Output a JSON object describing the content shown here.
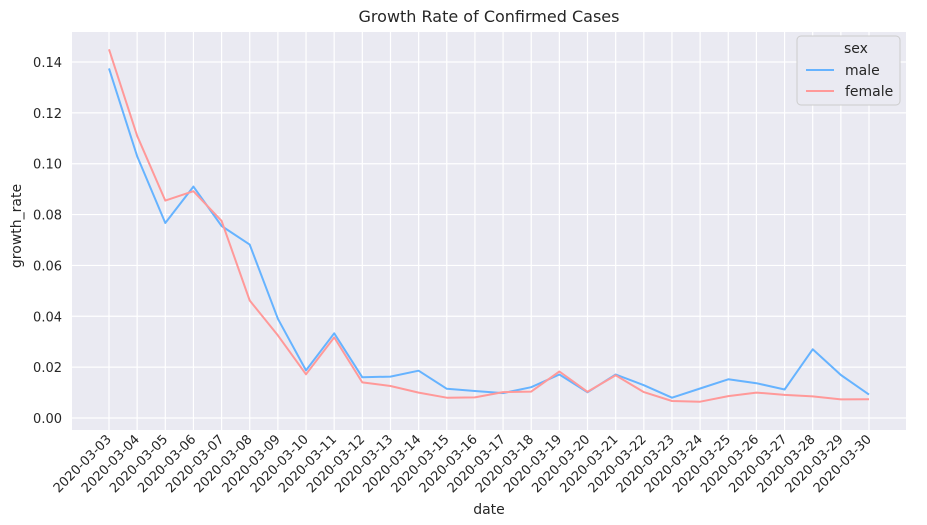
{
  "chart_data": {
    "type": "line",
    "title": "Growth Rate of Confirmed Cases",
    "xlabel": "date",
    "ylabel": "growth_rate",
    "ylim": [
      0,
      0.15
    ],
    "yticks": [
      "0.00",
      "0.02",
      "0.04",
      "0.06",
      "0.08",
      "0.10",
      "0.12",
      "0.14"
    ],
    "ytick_values": [
      0,
      0.02,
      0.04,
      0.06,
      0.08,
      0.1,
      0.12,
      0.14
    ],
    "grid": true,
    "legend": {
      "title": "sex",
      "position": "top-right"
    },
    "x": [
      "2020-03-03",
      "2020-03-04",
      "2020-03-05",
      "2020-03-06",
      "2020-03-07",
      "2020-03-08",
      "2020-03-09",
      "2020-03-10",
      "2020-03-11",
      "2020-03-12",
      "2020-03-13",
      "2020-03-14",
      "2020-03-15",
      "2020-03-16",
      "2020-03-17",
      "2020-03-18",
      "2020-03-19",
      "2020-03-20",
      "2020-03-21",
      "2020-03-22",
      "2020-03-23",
      "2020-03-24",
      "2020-03-25",
      "2020-03-26",
      "2020-03-27",
      "2020-03-28",
      "2020-03-29",
      "2020-03-30"
    ],
    "series": [
      {
        "name": "male",
        "color": "#66b3ff",
        "values": [
          0.1375,
          0.103,
          0.0767,
          0.091,
          0.0755,
          0.0682,
          0.039,
          0.0187,
          0.0333,
          0.016,
          0.0163,
          0.0186,
          0.0115,
          0.0106,
          0.0098,
          0.0121,
          0.0171,
          0.0101,
          0.0171,
          0.0129,
          0.008,
          0.0116,
          0.0152,
          0.0137,
          0.0112,
          0.027,
          0.0169,
          0.0092
        ]
      },
      {
        "name": "female",
        "color": "#ff9999",
        "values": [
          0.145,
          0.111,
          0.0855,
          0.0892,
          0.0775,
          0.0462,
          0.0325,
          0.0172,
          0.0317,
          0.014,
          0.0126,
          0.01,
          0.008,
          0.0081,
          0.0102,
          0.0104,
          0.0183,
          0.0103,
          0.0168,
          0.0102,
          0.0067,
          0.0064,
          0.0086,
          0.01,
          0.0091,
          0.0085,
          0.0073,
          0.0074
        ]
      }
    ]
  }
}
